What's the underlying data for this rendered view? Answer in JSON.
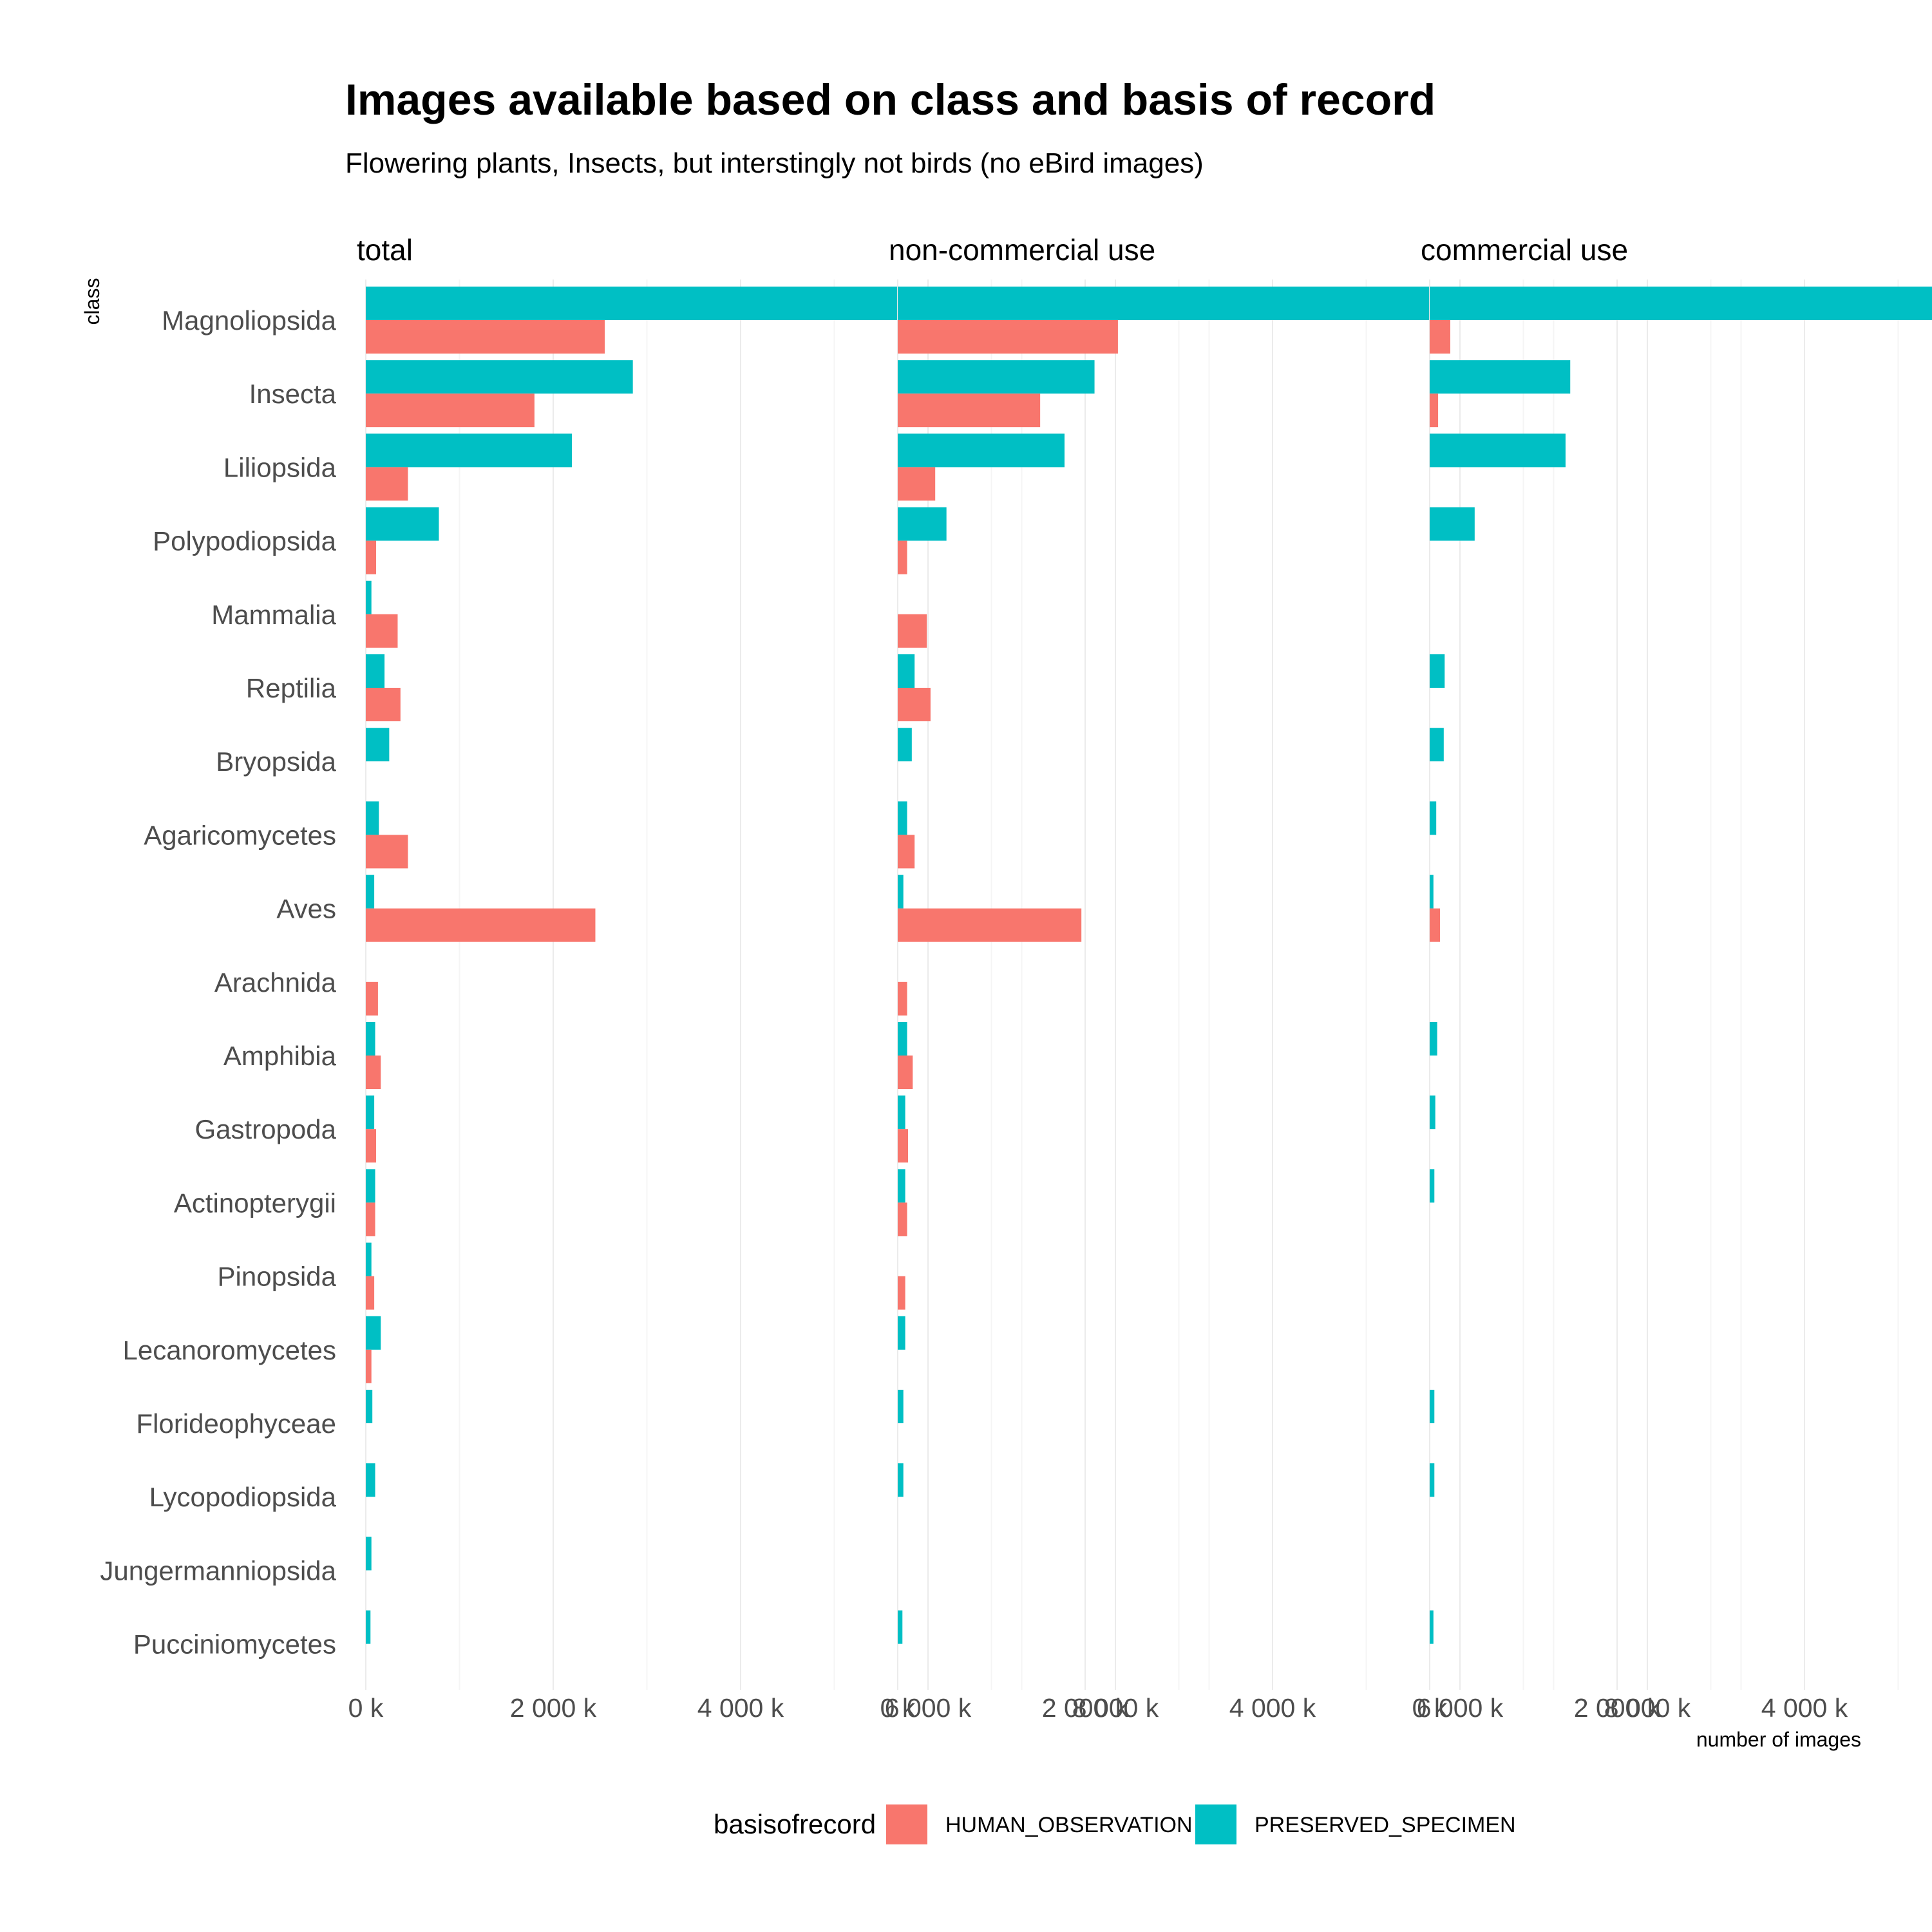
{
  "chart_data": {
    "type": "bar",
    "orientation": "horizontal",
    "title": "Images available based on class and basis of record",
    "subtitle": "Flowering plants, Insects, but interstingly not birds (no eBird images)",
    "ylabel": "class",
    "xlabel": "number of images",
    "categories": [
      "Magnoliopsida",
      "Insecta",
      "Liliopsida",
      "Polypodiopsida",
      "Mammalia",
      "Reptilia",
      "Bryopsida",
      "Agaricomycetes",
      "Aves",
      "Arachnida",
      "Amphibia",
      "Gastropoda",
      "Actinopterygii",
      "Pinopsida",
      "Lecanoromycetes",
      "Florideophyceae",
      "Lycopodiopsida",
      "Jungermanniopsida",
      "Pucciniomycetes"
    ],
    "xlim": [
      0,
      9000
    ],
    "x_ticks": [
      0,
      2000,
      4000,
      6000,
      8000
    ],
    "x_tick_labels": [
      "0 k",
      "2 000 k",
      "4 000 k",
      "6 000 k",
      "8 000 k"
    ],
    "grid": true,
    "legend": {
      "title": "basisofrecord",
      "position": "bottom",
      "entries": [
        {
          "name": "HUMAN_OBSERVATION",
          "color": "#F8766D"
        },
        {
          "name": "PRESERVED_SPECIMEN",
          "color": "#00BFC4"
        }
      ]
    },
    "facets": [
      {
        "title": "total",
        "series": [
          {
            "name": "PRESERVED_SPECIMEN",
            "values": [
              8850,
              2850,
              2200,
              780,
              60,
              200,
              250,
              140,
              90,
              0,
              100,
              90,
              100,
              60,
              160,
              70,
              100,
              60,
              50
            ]
          },
          {
            "name": "HUMAN_OBSERVATION",
            "values": [
              2550,
              1800,
              450,
              110,
              340,
              370,
              0,
              450,
              2450,
              130,
              160,
              110,
              100,
              90,
              60,
              0,
              0,
              0,
              0
            ]
          }
        ]
      },
      {
        "title": "non-commercial use",
        "series": [
          {
            "name": "PRESERVED_SPECIMEN",
            "values": [
              6900,
              2100,
              1780,
              520,
              0,
              180,
              150,
              100,
              60,
              0,
              100,
              80,
              80,
              0,
              80,
              60,
              60,
              0,
              50
            ]
          },
          {
            "name": "HUMAN_OBSERVATION",
            "values": [
              2350,
              1520,
              400,
              100,
              310,
              350,
              0,
              180,
              1960,
              100,
              160,
              110,
              100,
              80,
              0,
              0,
              0,
              0,
              0
            ]
          }
        ]
      },
      {
        "title": "commercial use",
        "series": [
          {
            "name": "PRESERVED_SPECIMEN",
            "values": [
              6000,
              1500,
              1450,
              480,
              0,
              160,
              150,
              70,
              40,
              0,
              80,
              60,
              50,
              0,
              0,
              50,
              50,
              0,
              40
            ]
          },
          {
            "name": "HUMAN_OBSERVATION",
            "values": [
              220,
              90,
              0,
              0,
              0,
              0,
              0,
              0,
              110,
              0,
              0,
              0,
              0,
              0,
              0,
              0,
              0,
              0,
              0
            ]
          }
        ]
      }
    ]
  }
}
